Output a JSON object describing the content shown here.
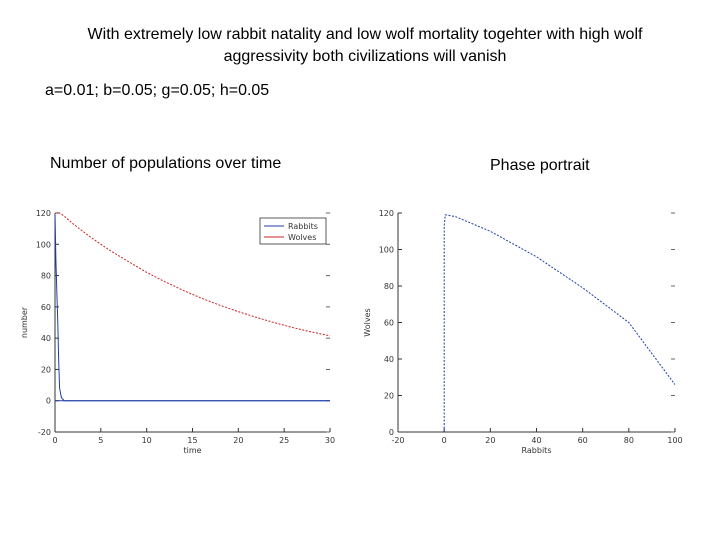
{
  "header": {
    "title_line1": "With extremely low rabbit natality and low wolf mortality togehter with high wolf",
    "title_line2": "aggressivity both civilizations will vanish",
    "params": "a=0.01; b=0.05; g=0.05; h=0.05"
  },
  "captions": {
    "left": "Number of populations over time",
    "right": "Phase portrait"
  },
  "chart_data": [
    {
      "type": "line",
      "xlabel": "time",
      "ylabel": "number",
      "xlim": [
        0,
        30
      ],
      "ylim": [
        -20,
        120
      ],
      "xticks": [
        "0",
        "5",
        "10",
        "15",
        "20",
        "25",
        "30"
      ],
      "yticks": [
        "-20",
        "0",
        "20",
        "40",
        "60",
        "80",
        "100",
        "120"
      ],
      "legend": {
        "position": "top-right",
        "entries": [
          "Rabbits",
          "Wolves"
        ]
      },
      "series": [
        {
          "name": "Rabbits",
          "color": "#1f3fa8",
          "x": [
            0,
            0.1,
            0.2,
            0.3,
            0.4,
            0.5,
            0.7,
            1,
            3,
            30
          ],
          "y": [
            120,
            90,
            70,
            50,
            25,
            8,
            2,
            0,
            0,
            0
          ]
        },
        {
          "name": "Wolves",
          "color": "#cc2222",
          "x": [
            0,
            0.5,
            1,
            2,
            4,
            6,
            8,
            10,
            12,
            14,
            16,
            18,
            20,
            22,
            24,
            26,
            28,
            30
          ],
          "y": [
            120,
            120,
            118,
            113,
            104,
            96,
            89,
            82,
            76,
            70.5,
            65.5,
            61,
            57,
            53.2,
            49.8,
            46.7,
            43.9,
            41.5
          ]
        }
      ]
    },
    {
      "type": "line",
      "xlabel": "Rabbits",
      "ylabel": "Wolves",
      "xlim": [
        -20,
        100
      ],
      "ylim": [
        0,
        120
      ],
      "xticks": [
        "-20",
        "0",
        "20",
        "40",
        "60",
        "80",
        "100"
      ],
      "yticks": [
        "0",
        "20",
        "40",
        "60",
        "80",
        "100",
        "120"
      ],
      "series": [
        {
          "color": "#1f3fa8",
          "x": [
            0,
            0,
            0.5,
            5,
            20,
            40,
            60,
            80,
            100
          ],
          "y": [
            0,
            113,
            119,
            118,
            110,
            96,
            79,
            60,
            26
          ]
        }
      ]
    }
  ]
}
